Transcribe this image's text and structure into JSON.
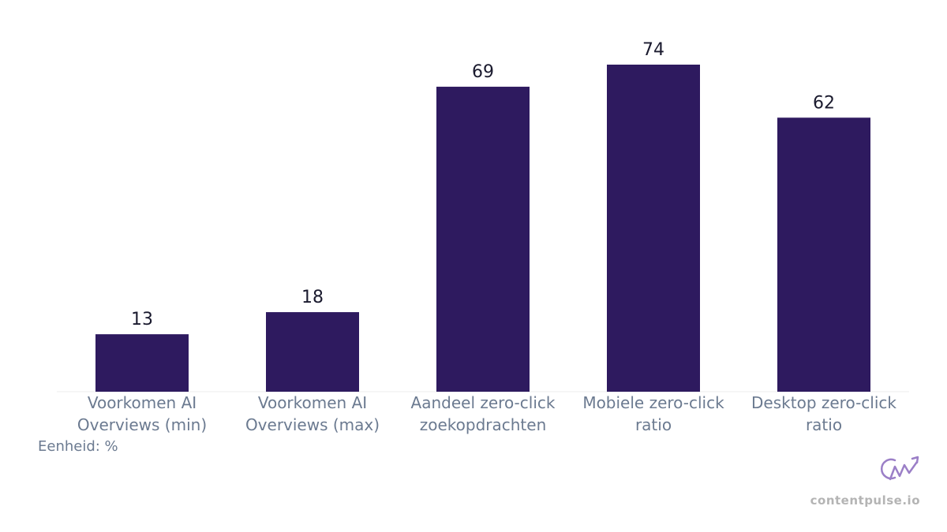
{
  "chart_data": {
    "type": "bar",
    "categories": [
      "Voorkomen AI Overviews (min)",
      "Voorkomen AI Overviews (max)",
      "Aandeel zero-click zoekopdrachten",
      "Mobiele zero-click ratio",
      "Desktop zero-click ratio"
    ],
    "values": [
      13,
      18,
      69,
      74,
      62
    ],
    "color": "#2e1a5f",
    "note": "Eenheid: %",
    "watermark": "contentpulse.io"
  }
}
